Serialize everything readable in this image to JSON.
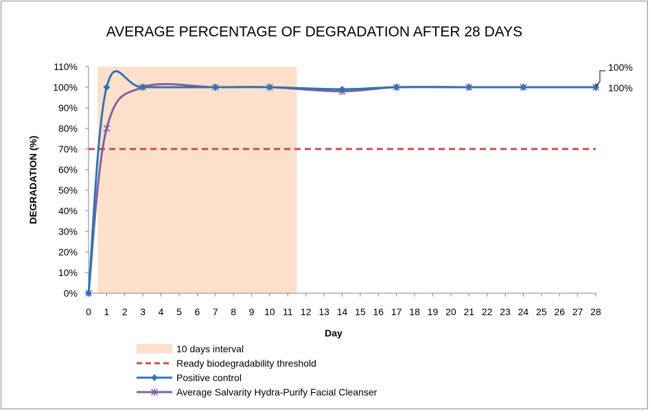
{
  "chart_data": {
    "type": "line",
    "title": "AVERAGE PERCENTAGE OF DEGRADATION AFTER 28 DAYS",
    "xlabel": "Day",
    "ylabel": "DEGRADATION (%)",
    "x_ticks": [
      "0",
      "1",
      "2",
      "3",
      "4",
      "5",
      "6",
      "7",
      "8",
      "9",
      "10",
      "11",
      "12",
      "13",
      "14",
      "15",
      "16",
      "17",
      "18",
      "19",
      "20",
      "21",
      "22",
      "23",
      "24",
      "25",
      "26",
      "27",
      "28"
    ],
    "y_ticks": [
      "0%",
      "10%",
      "20%",
      "30%",
      "40%",
      "50%",
      "60%",
      "70%",
      "80%",
      "90%",
      "100%",
      "110%"
    ],
    "ylim": [
      0,
      110
    ],
    "xlim": [
      0,
      28
    ],
    "shaded_interval": {
      "name": "10 days interval",
      "x_start": 0.5,
      "x_end": 11.5,
      "color": "#fde0cc"
    },
    "threshold": {
      "name": "Ready biodegradability threshold",
      "value": 70,
      "color": "#c0504d"
    },
    "series": [
      {
        "name": "Positive control",
        "color": "#2e75b6",
        "marker": "diamond",
        "x": [
          0,
          1,
          3,
          7,
          10,
          14,
          17,
          21,
          24,
          28
        ],
        "values": [
          0,
          100,
          100,
          100,
          100,
          99,
          100,
          100,
          100,
          100
        ],
        "end_label": "100%"
      },
      {
        "name": "Average Salvarity Hydra-Purify Facial Cleanser",
        "color": "#7e62a1",
        "marker": "asterisk",
        "x": [
          0,
          1,
          3,
          7,
          10,
          14,
          17,
          21,
          24,
          28
        ],
        "values": [
          0,
          80,
          100,
          100,
          100,
          98,
          100,
          100,
          100,
          100
        ],
        "end_label": "100%"
      }
    ],
    "grid": false,
    "legend_position": "bottom"
  }
}
